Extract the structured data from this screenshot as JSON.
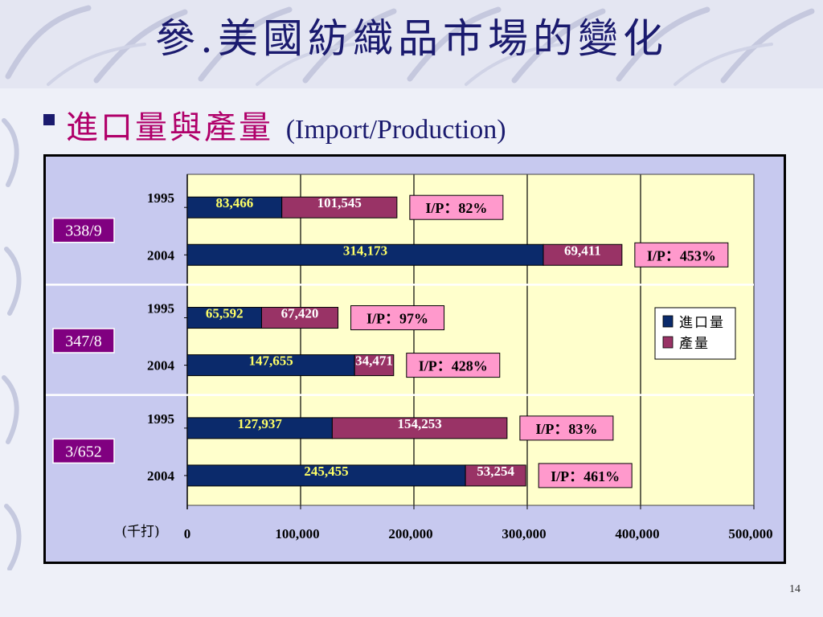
{
  "slide": {
    "title": "參.美國紡織品市場的變化",
    "subtitle_zh": "進口量與產量",
    "subtitle_en": "(Import/Production)",
    "page_number": "14"
  },
  "colors": {
    "import": "#0b2a6b",
    "production": "#993366",
    "ratio_box": "#ff99cc",
    "group_label": "#800080",
    "plot_bg": "#ffffcc",
    "chart_bg": "#c7c9ef",
    "value_text_yellow": "#ffff66",
    "value_text_white": "#ffffff"
  },
  "chart_data": {
    "type": "bar",
    "orientation": "horizontal",
    "stacked": true,
    "unit_label": "(千打)",
    "xlim": [
      0,
      500000
    ],
    "x_ticks": [
      "0",
      "100,000",
      "200,000",
      "300,000",
      "400,000",
      "500,000"
    ],
    "x_tick_values": [
      0,
      100000,
      200000,
      300000,
      400000,
      500000
    ],
    "grid": true,
    "legend_position": "right",
    "series": [
      {
        "name": "進口量",
        "key": "import"
      },
      {
        "name": "產量",
        "key": "production"
      }
    ],
    "groups": [
      {
        "label": "338/9",
        "rows": [
          {
            "year": "1995",
            "import": 83466,
            "import_label": "83,466",
            "production": 101545,
            "production_label": "101,545",
            "ratio": "I/P：82%"
          },
          {
            "year": "2004",
            "import": 314173,
            "import_label": "314,173",
            "production": 69411,
            "production_label": "69,411",
            "ratio": "I/P：453%"
          }
        ]
      },
      {
        "label": "347/8",
        "rows": [
          {
            "year": "1995",
            "import": 65592,
            "import_label": "65,592",
            "production": 67420,
            "production_label": "67,420",
            "ratio": "I/P：97%"
          },
          {
            "year": "2004",
            "import": 147655,
            "import_label": "147,655",
            "production": 34471,
            "production_label": "34,471",
            "ratio": "I/P：428%"
          }
        ]
      },
      {
        "label": "3/652",
        "rows": [
          {
            "year": "1995",
            "import": 127937,
            "import_label": "127,937",
            "production": 154253,
            "production_label": "154,253",
            "ratio": "I/P：83%"
          },
          {
            "year": "2004",
            "import": 245455,
            "import_label": "245,455",
            "production": 53254,
            "production_label": "53,254",
            "ratio": "I/P：461%"
          }
        ]
      }
    ]
  }
}
